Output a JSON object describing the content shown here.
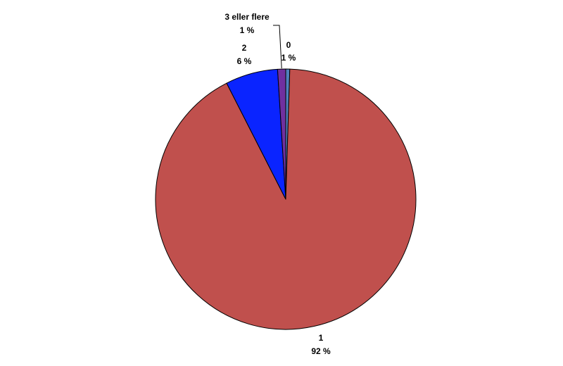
{
  "chart_data": {
    "type": "pie",
    "title": "",
    "start_angle_deg": 0,
    "direction": "clockwise",
    "slices": [
      {
        "category": "0",
        "value": 0.5,
        "percent_label": "1 %",
        "color": "#4F81BD"
      },
      {
        "category": "1",
        "value": 92.0,
        "percent_label": "92 %",
        "color": "#C0504D"
      },
      {
        "category": "2",
        "value": 6.5,
        "percent_label": "6 %",
        "color": "#0A24FF"
      },
      {
        "category": "3 eller flere",
        "value": 1.0,
        "percent_label": "1 %",
        "color": "#7030A0"
      }
    ]
  }
}
